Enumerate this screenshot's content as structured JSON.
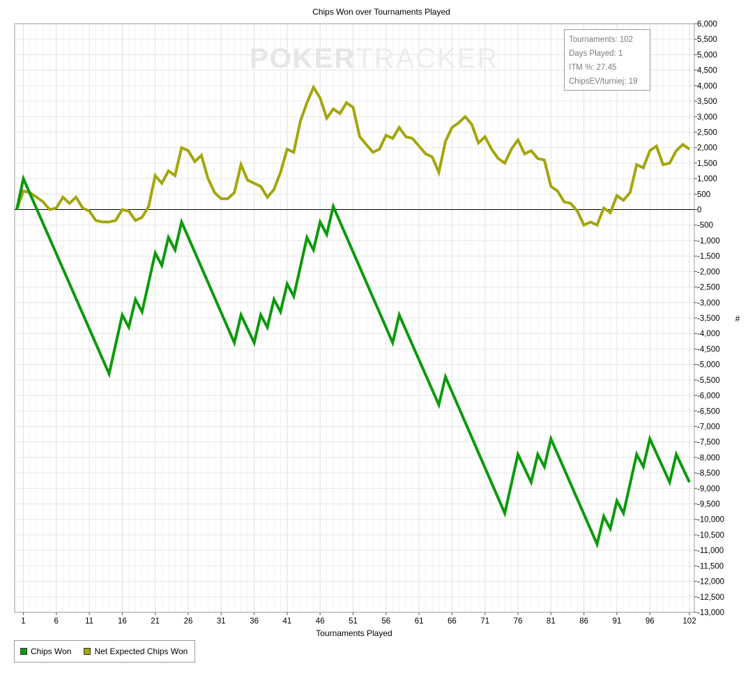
{
  "chart_data": {
    "type": "line",
    "title": "Chips Won over Tournaments Played",
    "xlabel": "Tournaments Played",
    "ylabel": "#",
    "xlim": [
      0,
      102
    ],
    "ylim": [
      -13000,
      6000
    ],
    "y_tick_step": 500,
    "x_ticks": [
      1,
      6,
      11,
      16,
      21,
      26,
      31,
      36,
      41,
      46,
      51,
      56,
      61,
      66,
      71,
      76,
      81,
      86,
      91,
      96,
      102
    ],
    "grid": true,
    "legend_position": "bottom-left",
    "watermark": {
      "part1": "POKER",
      "part2": "TRACKER"
    },
    "stats": [
      "Tournaments: 102",
      "Days Played: 1",
      "ITM %: 27.45",
      "ChipsEV/turniej: 19"
    ],
    "series": [
      {
        "name": "Chips Won",
        "color": "#0b9a0b",
        "points": [
          [
            0,
            0
          ],
          [
            1,
            1000
          ],
          [
            14,
            -5300
          ],
          [
            16,
            -3400
          ],
          [
            17,
            -3800
          ],
          [
            18,
            -2900
          ],
          [
            19,
            -3300
          ],
          [
            21,
            -1400
          ],
          [
            22,
            -1800
          ],
          [
            23,
            -900
          ],
          [
            24,
            -1300
          ],
          [
            25,
            -400
          ],
          [
            33,
            -4300
          ],
          [
            34,
            -3400
          ],
          [
            36,
            -4300
          ],
          [
            37,
            -3400
          ],
          [
            38,
            -3800
          ],
          [
            39,
            -2900
          ],
          [
            40,
            -3300
          ],
          [
            41,
            -2400
          ],
          [
            42,
            -2800
          ],
          [
            44,
            -900
          ],
          [
            45,
            -1300
          ],
          [
            46,
            -400
          ],
          [
            47,
            -800
          ],
          [
            48,
            100
          ],
          [
            57,
            -4300
          ],
          [
            58,
            -3400
          ],
          [
            64,
            -6300
          ],
          [
            65,
            -5400
          ],
          [
            74,
            -9800
          ],
          [
            76,
            -7900
          ],
          [
            78,
            -8800
          ],
          [
            79,
            -7900
          ],
          [
            80,
            -8300
          ],
          [
            81,
            -7400
          ],
          [
            88,
            -10800
          ],
          [
            89,
            -9900
          ],
          [
            90,
            -10300
          ],
          [
            91,
            -9400
          ],
          [
            92,
            -9800
          ],
          [
            94,
            -7900
          ],
          [
            95,
            -8300
          ],
          [
            96,
            -7400
          ],
          [
            99,
            -8800
          ],
          [
            100,
            -7900
          ],
          [
            102,
            -8800
          ]
        ]
      },
      {
        "name": "Net Expected Chips Won",
        "color": "#a3a60c",
        "points": [
          [
            0,
            0
          ],
          [
            1,
            600
          ],
          [
            2,
            550
          ],
          [
            3,
            400
          ],
          [
            4,
            250
          ],
          [
            5,
            0
          ],
          [
            6,
            50
          ],
          [
            7,
            400
          ],
          [
            8,
            200
          ],
          [
            9,
            400
          ],
          [
            10,
            50
          ],
          [
            11,
            -50
          ],
          [
            12,
            -350
          ],
          [
            13,
            -400
          ],
          [
            14,
            -400
          ],
          [
            15,
            -350
          ],
          [
            16,
            0
          ],
          [
            17,
            -50
          ],
          [
            18,
            -350
          ],
          [
            19,
            -250
          ],
          [
            20,
            100
          ],
          [
            21,
            1100
          ],
          [
            22,
            850
          ],
          [
            23,
            1250
          ],
          [
            24,
            1100
          ],
          [
            25,
            2000
          ],
          [
            26,
            1900
          ],
          [
            27,
            1550
          ],
          [
            28,
            1750
          ],
          [
            29,
            1000
          ],
          [
            30,
            550
          ],
          [
            31,
            350
          ],
          [
            32,
            350
          ],
          [
            33,
            550
          ],
          [
            34,
            1450
          ],
          [
            35,
            950
          ],
          [
            36,
            850
          ],
          [
            37,
            750
          ],
          [
            38,
            400
          ],
          [
            39,
            650
          ],
          [
            40,
            1200
          ],
          [
            41,
            1950
          ],
          [
            42,
            1850
          ],
          [
            43,
            2850
          ],
          [
            44,
            3450
          ],
          [
            45,
            3950
          ],
          [
            46,
            3600
          ],
          [
            47,
            2950
          ],
          [
            48,
            3250
          ],
          [
            49,
            3100
          ],
          [
            50,
            3450
          ],
          [
            51,
            3300
          ],
          [
            52,
            2350
          ],
          [
            53,
            2100
          ],
          [
            54,
            1850
          ],
          [
            55,
            1950
          ],
          [
            56,
            2400
          ],
          [
            57,
            2300
          ],
          [
            58,
            2650
          ],
          [
            59,
            2350
          ],
          [
            60,
            2300
          ],
          [
            61,
            2050
          ],
          [
            62,
            1800
          ],
          [
            63,
            1700
          ],
          [
            64,
            1200
          ],
          [
            65,
            2200
          ],
          [
            66,
            2650
          ],
          [
            67,
            2800
          ],
          [
            68,
            3000
          ],
          [
            69,
            2750
          ],
          [
            70,
            2150
          ],
          [
            71,
            2350
          ],
          [
            72,
            1950
          ],
          [
            73,
            1650
          ],
          [
            74,
            1500
          ],
          [
            75,
            1950
          ],
          [
            76,
            2250
          ],
          [
            77,
            1800
          ],
          [
            78,
            1900
          ],
          [
            79,
            1650
          ],
          [
            80,
            1600
          ],
          [
            81,
            750
          ],
          [
            82,
            600
          ],
          [
            83,
            250
          ],
          [
            84,
            200
          ],
          [
            85,
            -50
          ],
          [
            86,
            -500
          ],
          [
            87,
            -400
          ],
          [
            88,
            -500
          ],
          [
            89,
            50
          ],
          [
            90,
            -100
          ],
          [
            91,
            450
          ],
          [
            92,
            300
          ],
          [
            93,
            550
          ],
          [
            94,
            1450
          ],
          [
            95,
            1350
          ],
          [
            96,
            1900
          ],
          [
            97,
            2050
          ],
          [
            98,
            1450
          ],
          [
            99,
            1500
          ],
          [
            100,
            1900
          ],
          [
            101,
            2100
          ],
          [
            102,
            1950
          ]
        ]
      }
    ]
  }
}
